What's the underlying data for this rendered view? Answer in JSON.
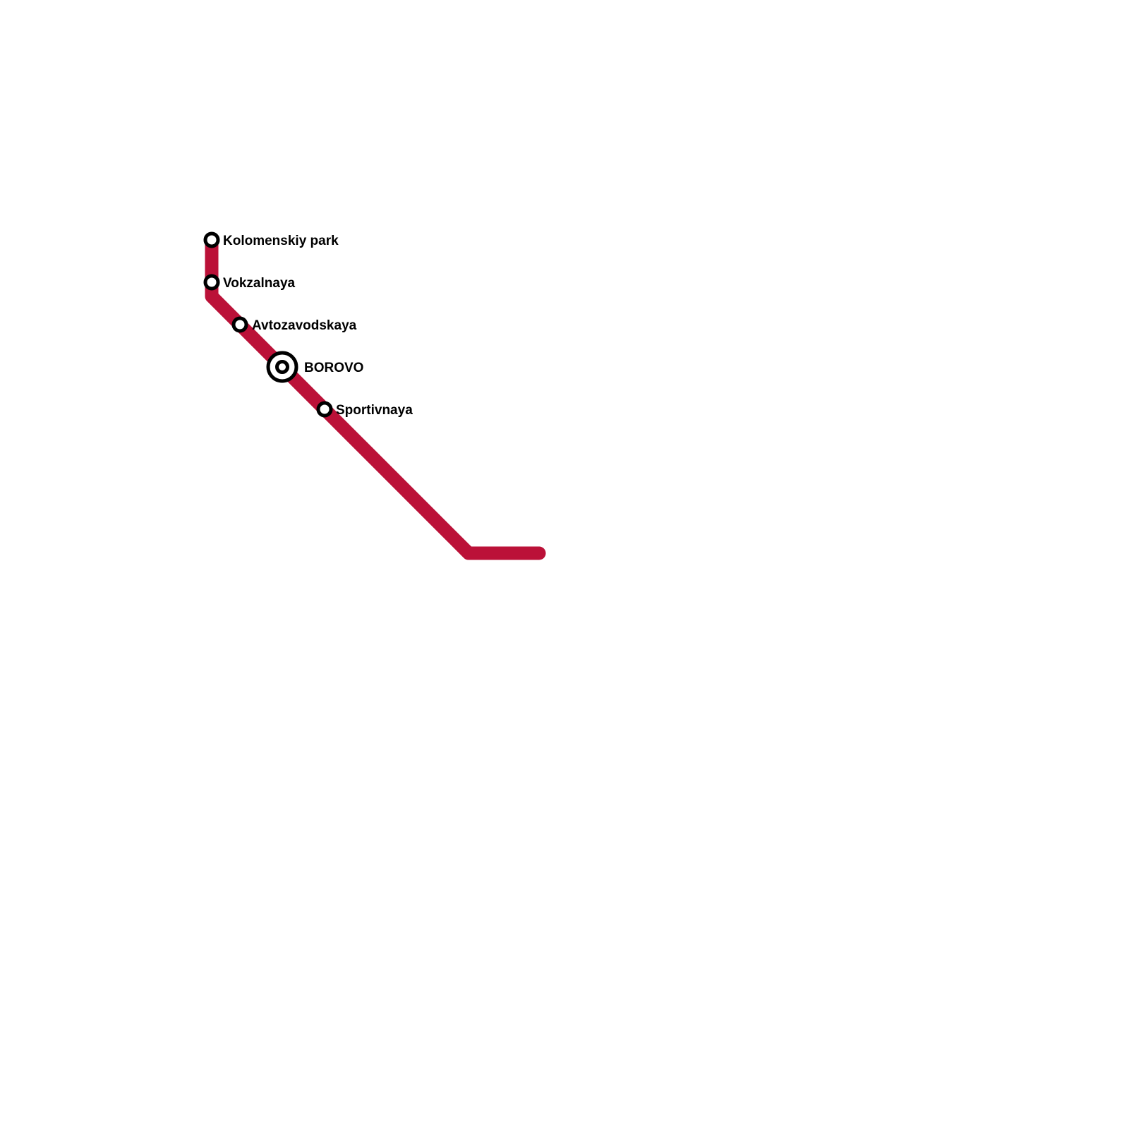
{
  "line": {
    "color": "#BB1138"
  },
  "stations": [
    {
      "name": "Kolomenskiy park",
      "type": "station"
    },
    {
      "name": "Vokzalnaya",
      "type": "station"
    },
    {
      "name": "Avtozavodskaya",
      "type": "station"
    },
    {
      "name": "BOROVO",
      "type": "interchange"
    },
    {
      "name": "Sportivnaya",
      "type": "station"
    }
  ]
}
